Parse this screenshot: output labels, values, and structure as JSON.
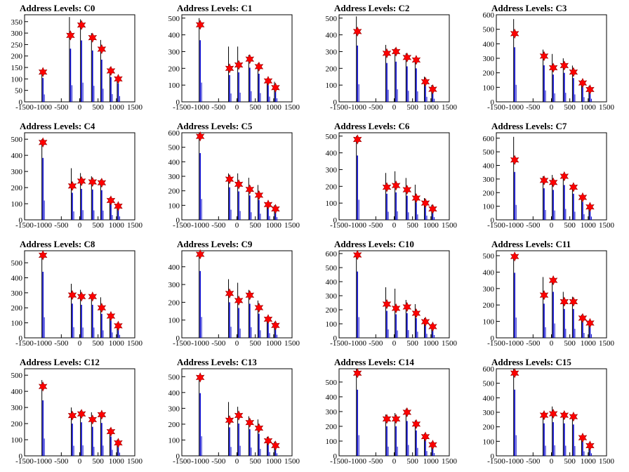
{
  "title_prefix": "Address Levels: ",
  "colors": {
    "histogram": "#0000cc",
    "spike": "#000000",
    "marker": "#ff0000",
    "marker_outline": "#990000",
    "axis": "#000000"
  },
  "chart_data": [
    {
      "type": "bar",
      "title": "Address Levels: C0",
      "xlim": [
        -1500,
        1500
      ],
      "ylim": [
        0,
        380
      ],
      "yticks": [
        0,
        50,
        100,
        150,
        200,
        250,
        300,
        350
      ],
      "xticks": [
        -1500,
        -1000,
        -500,
        0,
        500,
        1000,
        1500
      ],
      "peaks_x": [
        -1000,
        -250,
        50,
        350,
        600,
        850,
        1050
      ],
      "peaks_y": [
        130,
        290,
        335,
        280,
        230,
        135,
        100
      ],
      "spike_y": [
        140,
        370,
        360,
        300,
        270,
        150,
        110
      ]
    },
    {
      "type": "bar",
      "title": "Address Levels: C1",
      "xlim": [
        -1500,
        1500
      ],
      "ylim": [
        0,
        520
      ],
      "yticks": [
        0,
        100,
        200,
        300,
        400,
        500
      ],
      "xticks": [
        -1500,
        -1000,
        -500,
        0,
        500,
        1000,
        1500
      ],
      "peaks_x": [
        -1000,
        -200,
        50,
        350,
        600,
        850,
        1050
      ],
      "peaks_y": [
        460,
        200,
        220,
        255,
        210,
        125,
        85
      ],
      "spike_y": [
        500,
        330,
        330,
        280,
        230,
        140,
        120
      ]
    },
    {
      "type": "bar",
      "title": "Address Levels: C2",
      "xlim": [
        -1500,
        1500
      ],
      "ylim": [
        0,
        520
      ],
      "yticks": [
        0,
        100,
        200,
        300,
        400,
        500
      ],
      "xticks": [
        -1500,
        -1000,
        -500,
        0,
        500,
        1000,
        1500
      ],
      "peaks_x": [
        -1000,
        -200,
        50,
        350,
        600,
        850,
        1050
      ],
      "peaks_y": [
        420,
        290,
        300,
        265,
        250,
        120,
        75
      ],
      "spike_y": [
        510,
        340,
        320,
        290,
        260,
        150,
        100
      ]
    },
    {
      "type": "bar",
      "title": "Address Levels: C3",
      "xlim": [
        -1500,
        1500
      ],
      "ylim": [
        0,
        600
      ],
      "yticks": [
        0,
        100,
        200,
        300,
        400,
        500,
        600
      ],
      "xticks": [
        -1500,
        -1000,
        -500,
        0,
        500,
        1000,
        1500
      ],
      "peaks_x": [
        -1000,
        -200,
        50,
        350,
        600,
        850,
        1050
      ],
      "peaks_y": [
        470,
        315,
        235,
        250,
        205,
        130,
        85
      ],
      "spike_y": [
        570,
        360,
        330,
        300,
        250,
        150,
        110
      ]
    },
    {
      "type": "bar",
      "title": "Address Levels: C4",
      "xlim": [
        -1500,
        1500
      ],
      "ylim": [
        0,
        540
      ],
      "yticks": [
        0,
        100,
        200,
        300,
        400,
        500
      ],
      "xticks": [
        -1500,
        -1000,
        -500,
        0,
        500,
        1000,
        1500
      ],
      "peaks_x": [
        -1000,
        -200,
        50,
        350,
        600,
        850,
        1050
      ],
      "peaks_y": [
        480,
        210,
        240,
        235,
        230,
        120,
        85
      ],
      "spike_y": [
        500,
        320,
        290,
        270,
        250,
        140,
        100
      ]
    },
    {
      "type": "bar",
      "title": "Address Levels: C5",
      "xlim": [
        -1500,
        1500
      ],
      "ylim": [
        0,
        600
      ],
      "yticks": [
        0,
        100,
        200,
        300,
        400,
        500,
        600
      ],
      "xticks": [
        -1500,
        -1000,
        -500,
        0,
        500,
        1000,
        1500
      ],
      "peaks_x": [
        -1000,
        -200,
        50,
        350,
        600,
        850,
        1050
      ],
      "peaks_y": [
        575,
        280,
        245,
        210,
        170,
        105,
        75
      ],
      "spike_y": [
        600,
        320,
        320,
        290,
        240,
        120,
        100
      ]
    },
    {
      "type": "bar",
      "title": "Address Levels: C6",
      "xlim": [
        -1500,
        1500
      ],
      "ylim": [
        0,
        520
      ],
      "yticks": [
        0,
        100,
        200,
        300,
        400,
        500
      ],
      "xticks": [
        -1500,
        -1000,
        -500,
        0,
        500,
        1000,
        1500
      ],
      "peaks_x": [
        -1000,
        -200,
        50,
        350,
        600,
        850,
        1050
      ],
      "peaks_y": [
        480,
        195,
        205,
        180,
        130,
        100,
        65
      ],
      "spike_y": [
        500,
        280,
        290,
        250,
        210,
        130,
        90
      ]
    },
    {
      "type": "bar",
      "title": "Address Levels: C7",
      "xlim": [
        -1500,
        1500
      ],
      "ylim": [
        0,
        640
      ],
      "yticks": [
        0,
        100,
        200,
        300,
        400,
        500,
        600
      ],
      "xticks": [
        -1500,
        -1000,
        -500,
        0,
        500,
        1000,
        1500
      ],
      "peaks_x": [
        -1000,
        -200,
        50,
        350,
        600,
        850,
        1050
      ],
      "peaks_y": [
        440,
        290,
        275,
        320,
        240,
        165,
        95
      ],
      "spike_y": [
        610,
        320,
        330,
        340,
        260,
        180,
        110
      ]
    },
    {
      "type": "bar",
      "title": "Address Levels: C8",
      "xlim": [
        -1500,
        1500
      ],
      "ylim": [
        0,
        580
      ],
      "yticks": [
        0,
        100,
        200,
        300,
        400,
        500
      ],
      "xticks": [
        -1500,
        -1000,
        -500,
        0,
        500,
        1000,
        1500
      ],
      "peaks_x": [
        -1000,
        -200,
        50,
        350,
        600,
        850,
        1050
      ],
      "peaks_y": [
        550,
        285,
        275,
        275,
        200,
        145,
        80
      ],
      "spike_y": [
        560,
        360,
        320,
        290,
        270,
        160,
        100
      ]
    },
    {
      "type": "bar",
      "title": "Address Levels: C9",
      "xlim": [
        -1500,
        1500
      ],
      "ylim": [
        0,
        490
      ],
      "yticks": [
        0,
        100,
        200,
        300,
        400
      ],
      "xticks": [
        -1500,
        -1000,
        -500,
        0,
        500,
        1000,
        1500
      ],
      "peaks_x": [
        -1000,
        -200,
        50,
        350,
        600,
        850,
        1050
      ],
      "peaks_y": [
        470,
        250,
        210,
        240,
        170,
        105,
        70
      ],
      "spike_y": [
        480,
        330,
        310,
        270,
        210,
        120,
        90
      ]
    },
    {
      "type": "bar",
      "title": "Address Levels: C10",
      "xlim": [
        -1500,
        1500
      ],
      "ylim": [
        0,
        620
      ],
      "yticks": [
        0,
        100,
        200,
        300,
        400,
        500,
        600
      ],
      "xticks": [
        -1500,
        -1000,
        -500,
        0,
        500,
        1000,
        1500
      ],
      "peaks_x": [
        -1000,
        -200,
        50,
        350,
        600,
        850,
        1050
      ],
      "peaks_y": [
        590,
        240,
        210,
        220,
        175,
        115,
        80
      ],
      "spike_y": [
        600,
        360,
        350,
        270,
        240,
        140,
        100
      ]
    },
    {
      "type": "bar",
      "title": "Address Levels: C11",
      "xlim": [
        -1500,
        1500
      ],
      "ylim": [
        0,
        530
      ],
      "yticks": [
        0,
        100,
        200,
        300,
        400,
        500
      ],
      "xticks": [
        -1500,
        -1000,
        -500,
        0,
        500,
        1000,
        1500
      ],
      "peaks_x": [
        -1000,
        -200,
        50,
        350,
        600,
        850,
        1050
      ],
      "peaks_y": [
        495,
        260,
        350,
        220,
        220,
        120,
        90
      ],
      "spike_y": [
        500,
        370,
        360,
        280,
        250,
        140,
        100
      ]
    },
    {
      "type": "bar",
      "title": "Address Levels: C12",
      "xlim": [
        -1500,
        1500
      ],
      "ylim": [
        0,
        540
      ],
      "yticks": [
        0,
        100,
        200,
        300,
        400,
        500
      ],
      "xticks": [
        -1500,
        -1000,
        -500,
        0,
        500,
        1000,
        1500
      ],
      "peaks_x": [
        -1000,
        -200,
        50,
        350,
        600,
        850,
        1050
      ],
      "peaks_y": [
        430,
        250,
        260,
        225,
        255,
        150,
        80
      ],
      "spike_y": [
        470,
        300,
        280,
        270,
        270,
        170,
        100
      ]
    },
    {
      "type": "bar",
      "title": "Address Levels: C13",
      "xlim": [
        -1500,
        1500
      ],
      "ylim": [
        0,
        550
      ],
      "yticks": [
        0,
        100,
        200,
        300,
        400,
        500
      ],
      "xticks": [
        -1500,
        -1000,
        -500,
        0,
        500,
        1000,
        1500
      ],
      "peaks_x": [
        -1000,
        -200,
        50,
        350,
        600,
        850,
        1050
      ],
      "peaks_y": [
        495,
        225,
        255,
        210,
        175,
        95,
        65
      ],
      "spike_y": [
        500,
        340,
        310,
        250,
        230,
        120,
        90
      ]
    },
    {
      "type": "bar",
      "title": "Address Levels: C14",
      "xlim": [
        -1500,
        1500
      ],
      "ylim": [
        0,
        590
      ],
      "yticks": [
        0,
        100,
        200,
        300,
        400,
        500
      ],
      "xticks": [
        -1500,
        -1000,
        -500,
        0,
        500,
        1000,
        1500
      ],
      "peaks_x": [
        -1000,
        -200,
        50,
        350,
        600,
        850,
        1050
      ],
      "peaks_y": [
        560,
        250,
        250,
        295,
        215,
        130,
        75
      ],
      "spike_y": [
        590,
        280,
        290,
        320,
        240,
        150,
        95
      ]
    },
    {
      "type": "bar",
      "title": "Address Levels: C15",
      "xlim": [
        -1500,
        1500
      ],
      "ylim": [
        0,
        600
      ],
      "yticks": [
        0,
        100,
        200,
        300,
        400,
        500,
        600
      ],
      "xticks": [
        -1500,
        -1000,
        -500,
        0,
        500,
        1000,
        1500
      ],
      "peaks_x": [
        -1000,
        -200,
        50,
        350,
        600,
        850,
        1050
      ],
      "peaks_y": [
        570,
        280,
        290,
        280,
        270,
        125,
        70
      ],
      "spike_y": [
        600,
        300,
        340,
        300,
        280,
        140,
        90
      ]
    }
  ]
}
